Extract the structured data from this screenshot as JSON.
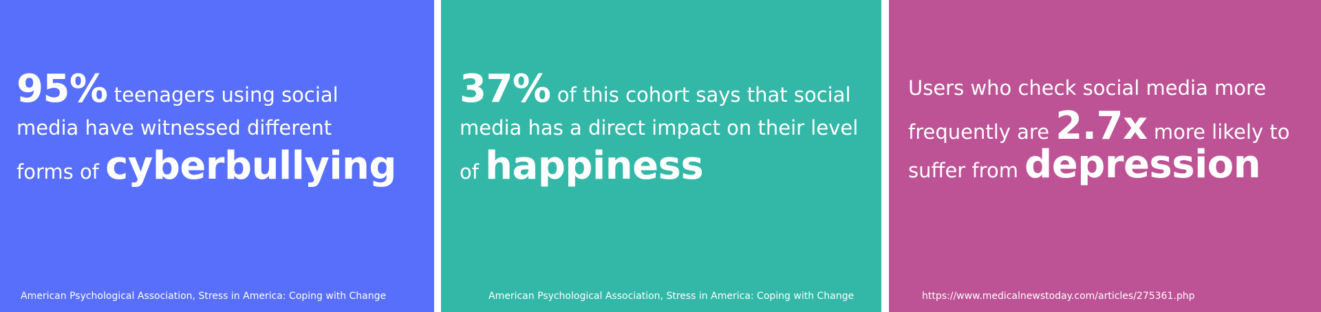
{
  "cards": [
    {
      "color": "#586ffb",
      "stat": "95%",
      "line1_rest": " teenagers using social",
      "line2": "media have witnessed different",
      "line3_prefix": "forms of ",
      "keyword": "cyberbullying",
      "source": "American Psychological Association, Stress in America: Coping with Change"
    },
    {
      "color": "#33b8a8",
      "stat": "37%",
      "line1_rest": " of this cohort says that social",
      "line2": "media has a direct impact on their level",
      "line3_prefix": "of ",
      "keyword": "happiness",
      "source": "American Psychological Association, Stress in America: Coping with Change"
    },
    {
      "color": "#bd5295",
      "line1": "Users who check social media more",
      "line2_prefix": "frequently are ",
      "stat": "2.7x",
      "line2_suffix": " more likely to",
      "line3_prefix": "suffer from ",
      "keyword": "depression",
      "source": "https://www.medicalnewstoday.com/articles/275361.php"
    }
  ]
}
